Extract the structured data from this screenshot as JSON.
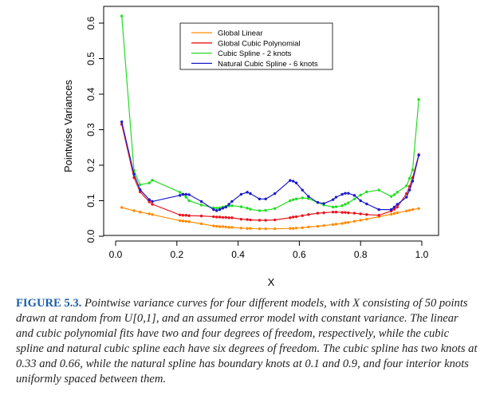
{
  "chart_data": {
    "type": "line",
    "xlabel": "X",
    "ylabel": "Pointwise Variances",
    "xlim": [
      0.0,
      1.0
    ],
    "ylim": [
      0.0,
      0.62
    ],
    "xticks": [
      "0.0",
      "0.2",
      "0.4",
      "0.6",
      "0.8",
      "1.0"
    ],
    "yticks": [
      "0.0",
      "0.1",
      "0.2",
      "0.3",
      "0.4",
      "0.5",
      "0.6"
    ],
    "legend_position": "top-right",
    "x": [
      0.02,
      0.06,
      0.08,
      0.11,
      0.12,
      0.21,
      0.22,
      0.23,
      0.24,
      0.28,
      0.32,
      0.33,
      0.34,
      0.35,
      0.36,
      0.37,
      0.38,
      0.41,
      0.43,
      0.44,
      0.47,
      0.49,
      0.52,
      0.57,
      0.58,
      0.59,
      0.61,
      0.63,
      0.66,
      0.68,
      0.71,
      0.72,
      0.74,
      0.75,
      0.76,
      0.78,
      0.8,
      0.82,
      0.86,
      0.9,
      0.91,
      0.92,
      0.95,
      0.96,
      0.97,
      0.99
    ],
    "series": [
      {
        "name": "Global Linear",
        "color": "#ff8c00",
        "values": [
          0.081,
          0.072,
          0.068,
          0.063,
          0.061,
          0.044,
          0.043,
          0.042,
          0.041,
          0.035,
          0.029,
          0.028,
          0.027,
          0.027,
          0.026,
          0.025,
          0.025,
          0.023,
          0.022,
          0.022,
          0.021,
          0.021,
          0.021,
          0.022,
          0.022,
          0.023,
          0.024,
          0.026,
          0.028,
          0.03,
          0.033,
          0.034,
          0.036,
          0.038,
          0.039,
          0.042,
          0.045,
          0.048,
          0.055,
          0.062,
          0.064,
          0.066,
          0.071,
          0.073,
          0.075,
          0.078
        ]
      },
      {
        "name": "Global Cubic Polynomial",
        "color": "#e8141e",
        "values": [
          0.315,
          0.165,
          0.125,
          0.097,
          0.09,
          0.06,
          0.059,
          0.059,
          0.058,
          0.057,
          0.055,
          0.054,
          0.054,
          0.053,
          0.053,
          0.052,
          0.052,
          0.048,
          0.047,
          0.046,
          0.045,
          0.045,
          0.046,
          0.052,
          0.054,
          0.055,
          0.058,
          0.061,
          0.065,
          0.066,
          0.068,
          0.068,
          0.067,
          0.067,
          0.066,
          0.065,
          0.063,
          0.061,
          0.059,
          0.071,
          0.076,
          0.082,
          0.12,
          0.14,
          0.165,
          0.23
        ]
      },
      {
        "name": "Cubic Spline - 2 knots",
        "color": "#22dd22",
        "values": [
          0.62,
          0.185,
          0.145,
          0.15,
          0.158,
          0.124,
          0.118,
          0.11,
          0.1,
          0.088,
          0.08,
          0.079,
          0.08,
          0.082,
          0.084,
          0.085,
          0.086,
          0.083,
          0.079,
          0.076,
          0.072,
          0.073,
          0.078,
          0.1,
          0.103,
          0.105,
          0.108,
          0.106,
          0.095,
          0.088,
          0.082,
          0.083,
          0.086,
          0.09,
          0.094,
          0.105,
          0.116,
          0.125,
          0.13,
          0.112,
          0.117,
          0.124,
          0.142,
          0.163,
          0.187,
          0.385
        ]
      },
      {
        "name": "Natural Cubic Spline - 6 knots",
        "color": "#1a1acc",
        "values": [
          0.322,
          0.175,
          0.131,
          0.103,
          0.098,
          0.115,
          0.118,
          0.118,
          0.117,
          0.098,
          0.075,
          0.072,
          0.075,
          0.079,
          0.082,
          0.09,
          0.098,
          0.118,
          0.124,
          0.12,
          0.105,
          0.105,
          0.12,
          0.157,
          0.155,
          0.15,
          0.13,
          0.112,
          0.095,
          0.092,
          0.103,
          0.11,
          0.118,
          0.121,
          0.121,
          0.115,
          0.1,
          0.091,
          0.075,
          0.075,
          0.082,
          0.09,
          0.11,
          0.13,
          0.155,
          0.228
        ]
      }
    ]
  },
  "caption": {
    "label": "FIGURE 5.3.",
    "text": "Pointwise variance curves for four different models, with X consisting of 50 points drawn at random from U[0,1], and an assumed error model with constant variance. The linear and cubic polynomial fits have two and four degrees of freedom, respectively, while the cubic spline and natural cubic spline each have six degrees of freedom. The cubic spline has two knots at 0.33 and 0.66, while the natural spline has boundary knots at 0.1 and 0.9, and four interior knots uniformly spaced between them."
  }
}
